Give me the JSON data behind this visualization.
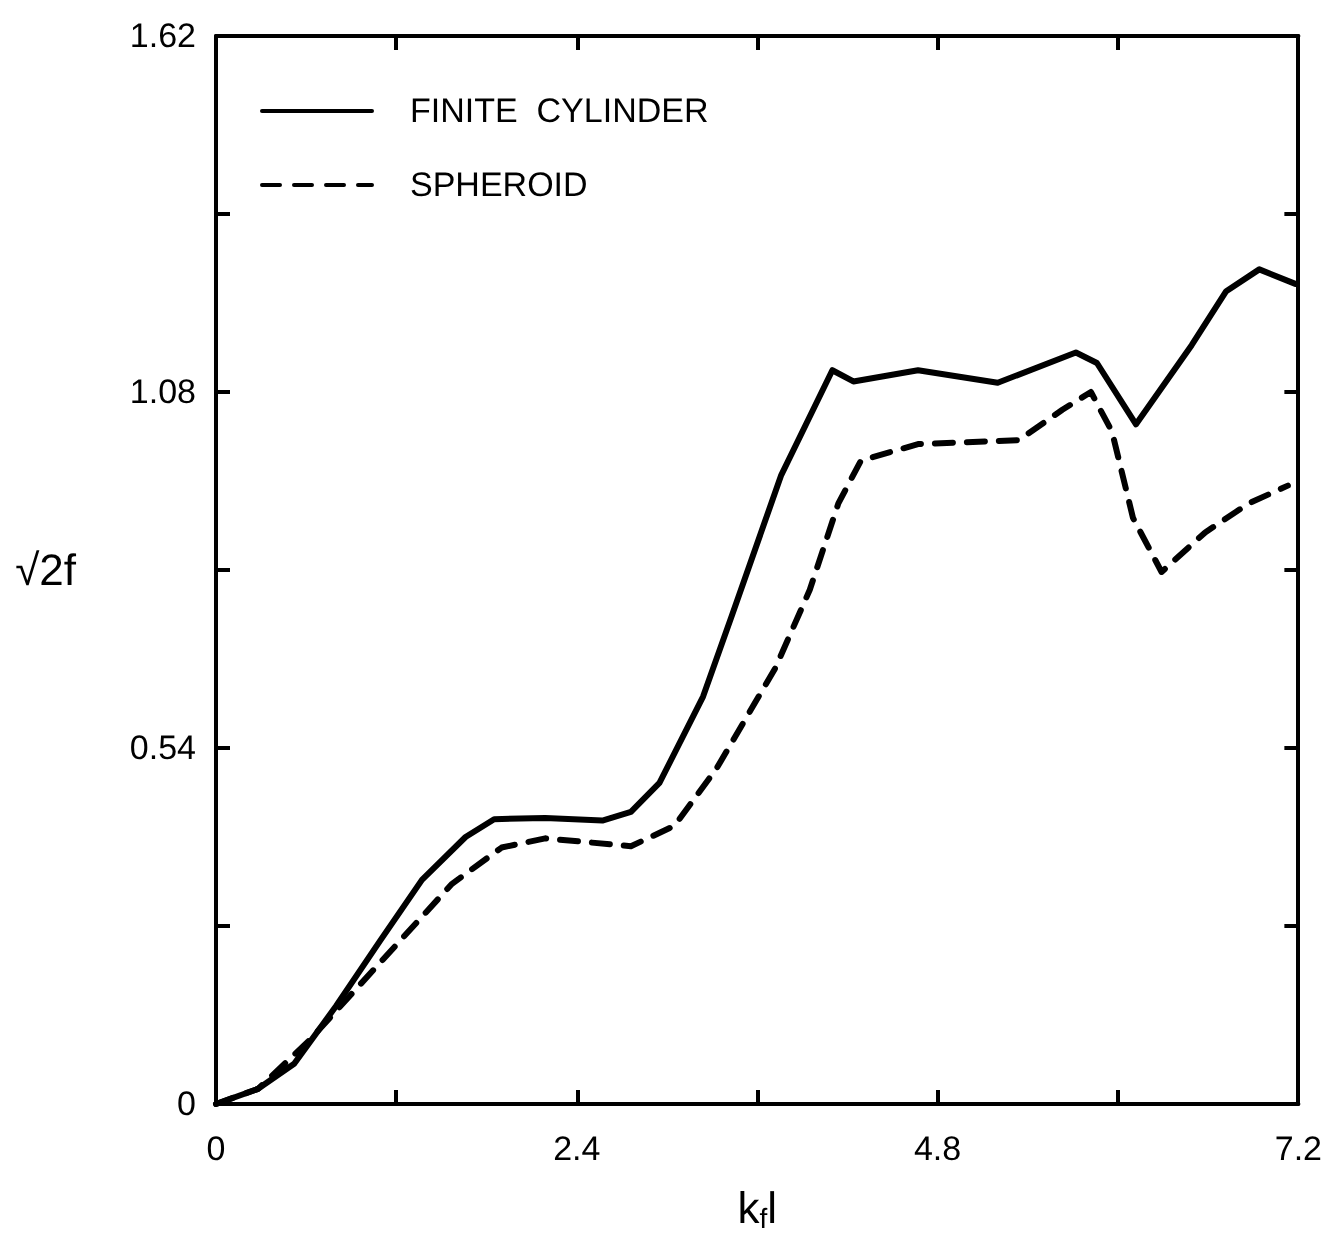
{
  "chart_data": {
    "type": "line",
    "xlabel": "k$_{f}$l",
    "ylabel": "√2f",
    "xlim": [
      0,
      7.2
    ],
    "xticks": [
      0,
      {
        "value": 1.2,
        "label": null
      },
      2.4,
      {
        "value": 3.6,
        "label": null
      },
      4.8,
      {
        "value": 6.0,
        "label": null
      },
      7.2
    ],
    "ylim": [
      0,
      1.62
    ],
    "yticks": [
      0,
      {
        "value": 0.27,
        "label": null
      },
      0.54,
      {
        "value": 0.81,
        "label": null
      },
      1.08,
      {
        "value": 1.35,
        "label": null
      },
      1.62
    ],
    "grid": false,
    "legend": "top left",
    "marker": "none",
    "series": [
      {
        "name": "FINITE  CYLINDER",
        "color": "#000000",
        "line_style": "solid",
        "x": [
          0,
          0.28,
          0.52,
          0.8,
          1.09,
          1.37,
          1.66,
          1.85,
          2.19,
          2.57,
          2.76,
          2.95,
          3.24,
          3.43,
          3.76,
          4.1,
          4.24,
          4.67,
          5.2,
          5.72,
          5.86,
          6.12,
          6.49,
          6.72,
          6.94,
          7.18
        ],
        "values": [
          0,
          0.023,
          0.061,
          0.149,
          0.247,
          0.34,
          0.405,
          0.432,
          0.434,
          0.43,
          0.443,
          0.487,
          0.618,
          0.74,
          0.954,
          1.113,
          1.096,
          1.113,
          1.094,
          1.14,
          1.124,
          1.031,
          1.151,
          1.233,
          1.266,
          1.244
        ]
      },
      {
        "name": "SPHEROID",
        "color": "#000000",
        "line_style": "dashed",
        "x": [
          0,
          0.28,
          0.61,
          1.09,
          1.57,
          1.9,
          2.19,
          2.76,
          3.05,
          3.33,
          3.72,
          3.95,
          4.14,
          4.29,
          4.67,
          5.34,
          5.63,
          5.82,
          5.96,
          6.1,
          6.29,
          6.58,
          6.87,
          7.13
        ],
        "values": [
          0,
          0.023,
          0.094,
          0.214,
          0.334,
          0.389,
          0.403,
          0.391,
          0.422,
          0.509,
          0.661,
          0.78,
          0.911,
          0.976,
          1.001,
          1.007,
          1.053,
          1.08,
          1.02,
          0.889,
          0.807,
          0.867,
          0.911,
          0.938
        ]
      }
    ]
  }
}
